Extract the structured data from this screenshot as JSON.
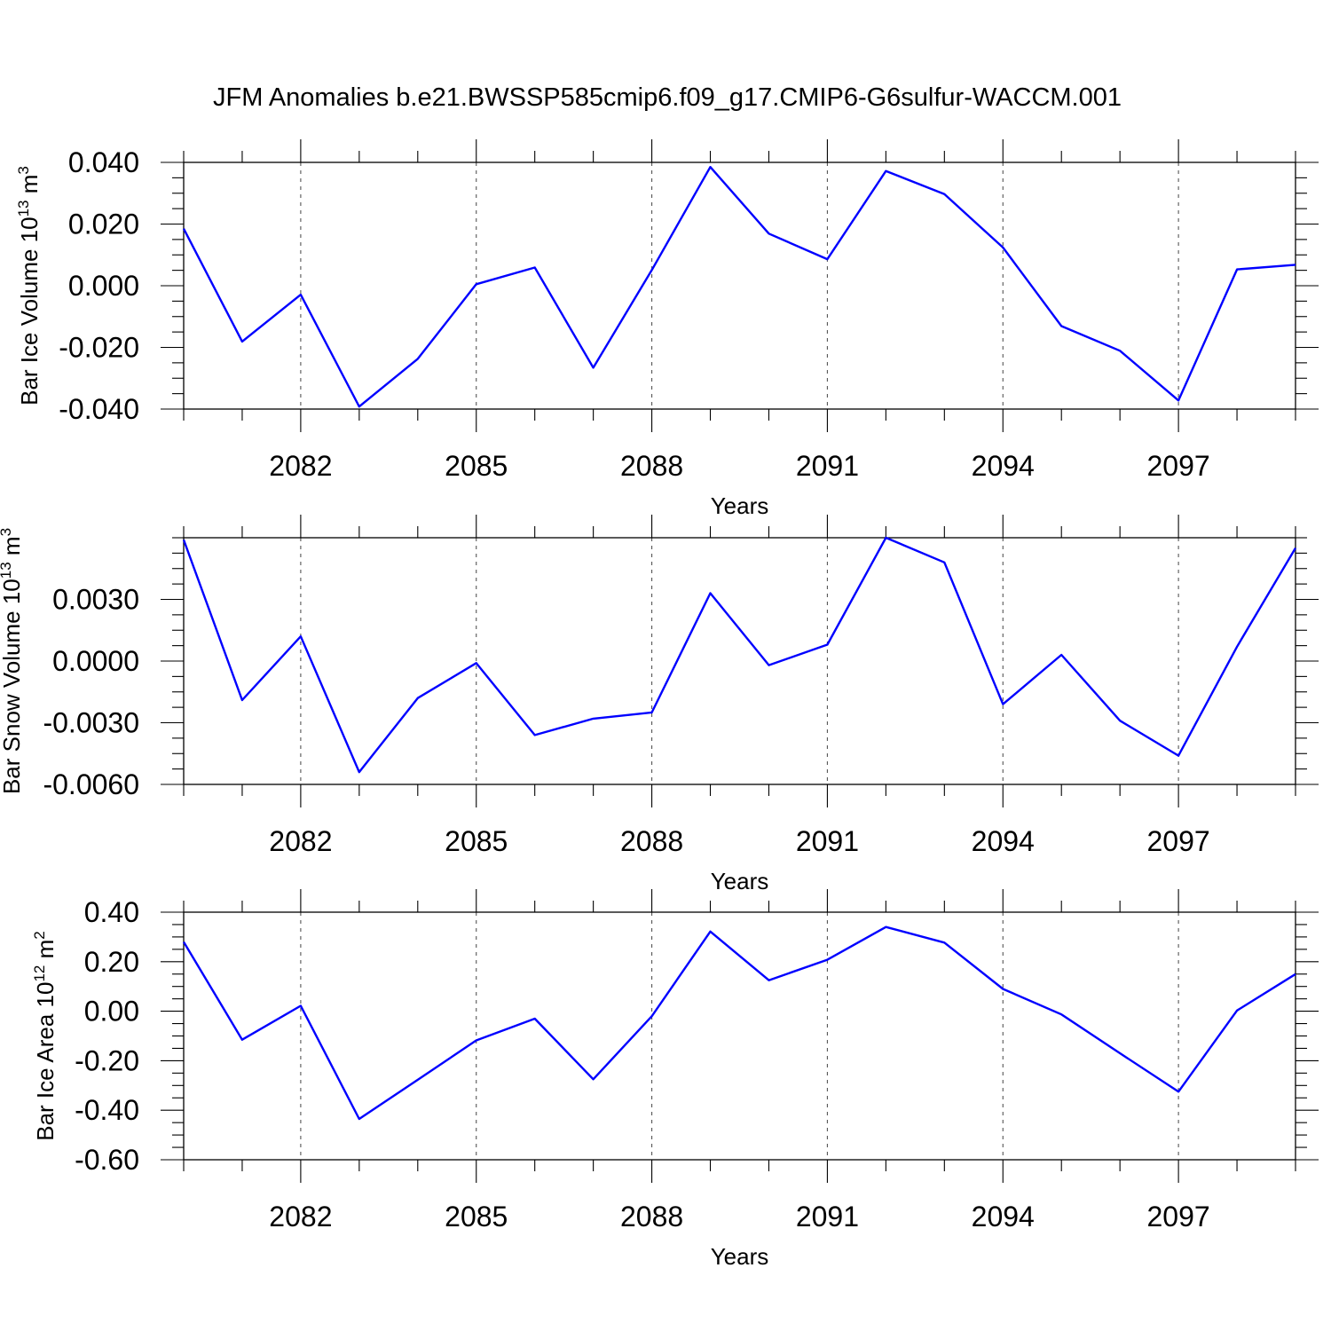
{
  "figure_title": "JFM Anomalies b.e21.BWSSP585cmip6.f09_g17.CMIP6-G6sulfur-WACCM.001",
  "line_color": "#0000ff",
  "chart_data": [
    {
      "type": "line",
      "xlabel": "Years",
      "ylabel": {
        "text": "Bar Ice Volume 10",
        "sup": "13",
        "unit": " m",
        "unit_sup": "3"
      },
      "xlim": [
        2080,
        2099
      ],
      "ylim": [
        -0.04,
        0.04
      ],
      "x_ticks": [
        "2082",
        "2085",
        "2088",
        "2091",
        "2094",
        "2097"
      ],
      "y_ticks": [
        "0.040",
        "0.020",
        "0.000",
        "-0.020",
        "-0.040"
      ],
      "y_tick_values": [
        0.04,
        0.02,
        0.0,
        -0.02,
        -0.04
      ],
      "grid": "vertical dashed at labeled years",
      "x": [
        2080,
        2081,
        2082,
        2083,
        2084,
        2085,
        2086,
        2087,
        2088,
        2089,
        2090,
        2091,
        2092,
        2093,
        2094,
        2095,
        2096,
        2097,
        2098,
        2099
      ],
      "values": [
        0.0185,
        -0.0181,
        -0.0029,
        -0.0392,
        -0.0237,
        0.0005,
        0.0059,
        -0.0266,
        0.0051,
        0.0385,
        0.0169,
        0.0086,
        0.0372,
        0.0297,
        0.0124,
        -0.0131,
        -0.0211,
        -0.0372,
        0.0053,
        0.0068
      ]
    },
    {
      "type": "line",
      "xlabel": "Years",
      "ylabel": {
        "text": "Bar Snow Volume 10",
        "sup": "13",
        "unit": " m",
        "unit_sup": "3"
      },
      "xlim": [
        2080,
        2099
      ],
      "ylim": [
        -0.006,
        0.006
      ],
      "x_ticks": [
        "2082",
        "2085",
        "2088",
        "2091",
        "2094",
        "2097"
      ],
      "y_ticks": [
        "0.0030",
        "0.0000",
        "-0.0030",
        "-0.0060"
      ],
      "y_tick_values": [
        0.003,
        0.0,
        -0.003,
        -0.006
      ],
      "grid": "vertical dashed at labeled years",
      "x": [
        2080,
        2081,
        2082,
        2083,
        2084,
        2085,
        2086,
        2087,
        2088,
        2089,
        2090,
        2091,
        2092,
        2093,
        2094,
        2095,
        2096,
        2097,
        2098,
        2099
      ],
      "values": [
        0.0059,
        -0.0019,
        0.0012,
        -0.0054,
        -0.0018,
        -0.0001,
        -0.0036,
        -0.0028,
        -0.0025,
        0.0033,
        -0.0002,
        0.0008,
        0.006,
        0.0048,
        -0.0021,
        0.0003,
        -0.0029,
        -0.0046,
        0.0007,
        0.0055
      ]
    },
    {
      "type": "line",
      "xlabel": "Years",
      "ylabel": {
        "text": "Bar Ice Area 10",
        "sup": "12",
        "unit": " m",
        "unit_sup": "2"
      },
      "xlim": [
        2080,
        2099
      ],
      "ylim": [
        -0.6,
        0.4
      ],
      "x_ticks": [
        "2082",
        "2085",
        "2088",
        "2091",
        "2094",
        "2097"
      ],
      "y_ticks": [
        "0.40",
        "0.20",
        "0.00",
        "-0.20",
        "-0.40",
        "-0.60"
      ],
      "y_tick_values": [
        0.4,
        0.2,
        0.0,
        -0.2,
        -0.4,
        -0.6
      ],
      "grid": "vertical dashed at labeled years",
      "x": [
        2080,
        2081,
        2082,
        2083,
        2084,
        2085,
        2086,
        2087,
        2088,
        2089,
        2090,
        2091,
        2092,
        2093,
        2094,
        2095,
        2096,
        2097,
        2098,
        2099
      ],
      "values": [
        0.28,
        -0.115,
        0.022,
        -0.435,
        -0.277,
        -0.118,
        -0.03,
        -0.275,
        -0.02,
        0.322,
        0.125,
        0.208,
        0.34,
        0.277,
        0.09,
        -0.013,
        -0.17,
        -0.325,
        0.003,
        0.15
      ]
    }
  ]
}
